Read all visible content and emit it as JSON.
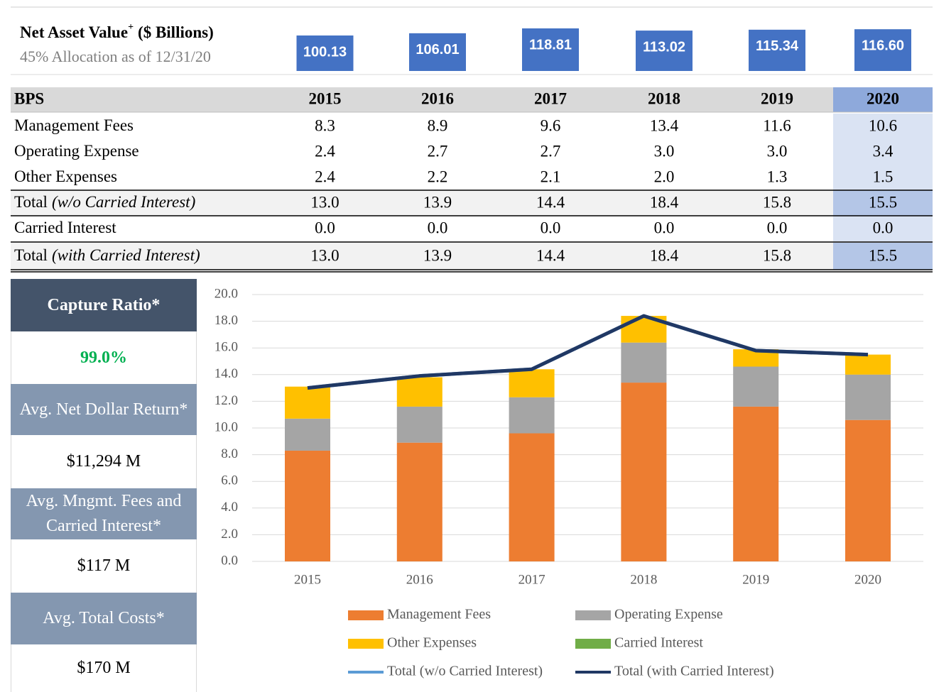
{
  "header": {
    "title": "Net Asset Value",
    "title_sup": "+",
    "title_unit": "($ Billions)",
    "subtitle": "45% Allocation as of 12/31/20"
  },
  "nav": {
    "values": [
      100.13,
      106.01,
      118.81,
      113.02,
      115.34,
      116.6
    ],
    "value_labels": [
      "100.13",
      "106.01",
      "118.81",
      "113.02",
      "115.34",
      "116.60"
    ],
    "color": "#4472c4"
  },
  "table": {
    "header": [
      "BPS",
      "2015",
      "2016",
      "2017",
      "2018",
      "2019",
      "2020"
    ],
    "rows": [
      {
        "label": "Management Fees",
        "cells": [
          "8.3",
          "8.9",
          "9.6",
          "13.4",
          "11.6",
          "10.6"
        ]
      },
      {
        "label": "Operating Expense",
        "cells": [
          "2.4",
          "2.7",
          "2.7",
          "3.0",
          "3.0",
          "3.4"
        ]
      },
      {
        "label": "Other Expenses",
        "cells": [
          "2.4",
          "2.2",
          "2.1",
          "2.0",
          "1.3",
          "1.5"
        ]
      },
      {
        "label": "Total",
        "note": "(w/o Carried Interest)",
        "cells": [
          "13.0",
          "13.9",
          "14.4",
          "18.4",
          "15.8",
          "15.5"
        ]
      },
      {
        "label": "Carried Interest",
        "cells": [
          "0.0",
          "0.0",
          "0.0",
          "0.0",
          "0.0",
          "0.0"
        ]
      },
      {
        "label": "Total",
        "note": "(with Carried Interest)",
        "cells": [
          "13.0",
          "13.9",
          "14.4",
          "18.4",
          "15.8",
          "15.5"
        ]
      }
    ]
  },
  "panel": [
    {
      "label": "Capture Ratio*",
      "value": "99.0%"
    },
    {
      "label": "Avg. Net Dollar Return*",
      "value": "$11,294 M"
    },
    {
      "label": "Avg. Mngmt. Fees and Carried Interest*",
      "value": "$117 M"
    },
    {
      "label": "Avg. Total Costs*",
      "value": "$170 M"
    }
  ],
  "chart_data": {
    "type": "stacked_bar_line",
    "categories": [
      "2015",
      "2016",
      "2017",
      "2018",
      "2019",
      "2020"
    ],
    "series": [
      {
        "name": "Management Fees",
        "kind": "bar",
        "color": "#ed7d31",
        "values": [
          8.3,
          8.9,
          9.6,
          13.4,
          11.6,
          10.6
        ]
      },
      {
        "name": "Operating Expense",
        "kind": "bar",
        "color": "#a5a5a5",
        "values": [
          2.4,
          2.7,
          2.7,
          3.0,
          3.0,
          3.4
        ]
      },
      {
        "name": "Other Expenses",
        "kind": "bar",
        "color": "#ffc000",
        "values": [
          2.4,
          2.2,
          2.1,
          2.0,
          1.3,
          1.5
        ]
      },
      {
        "name": "Carried Interest",
        "kind": "bar",
        "color": "#70ad47",
        "values": [
          0.0,
          0.0,
          0.0,
          0.0,
          0.0,
          0.0
        ]
      },
      {
        "name": "Total (w/o Carried Interest)",
        "kind": "line",
        "color": "#5b9bd5",
        "values": [
          13.0,
          13.9,
          14.4,
          18.4,
          15.8,
          15.5
        ]
      },
      {
        "name": "Total (with Carried Interest)",
        "kind": "line",
        "color": "#203864",
        "values": [
          13.0,
          13.9,
          14.4,
          18.4,
          15.8,
          15.5
        ]
      }
    ],
    "ylim": [
      0,
      20
    ],
    "yticks": [
      {
        "value": 0,
        "label": "0.0"
      },
      {
        "value": 2,
        "label": "2.0"
      },
      {
        "value": 4,
        "label": "4.0"
      },
      {
        "value": 6,
        "label": "6.0"
      },
      {
        "value": 8,
        "label": "8.0"
      },
      {
        "value": 10,
        "label": "10.0"
      },
      {
        "value": 12,
        "label": "12.0"
      },
      {
        "value": 14,
        "label": "14.0"
      },
      {
        "value": 16,
        "label": "16.0"
      },
      {
        "value": 18,
        "label": "18.0"
      },
      {
        "value": 20,
        "label": "20.0"
      }
    ],
    "grid": true,
    "legend": "bottom"
  }
}
